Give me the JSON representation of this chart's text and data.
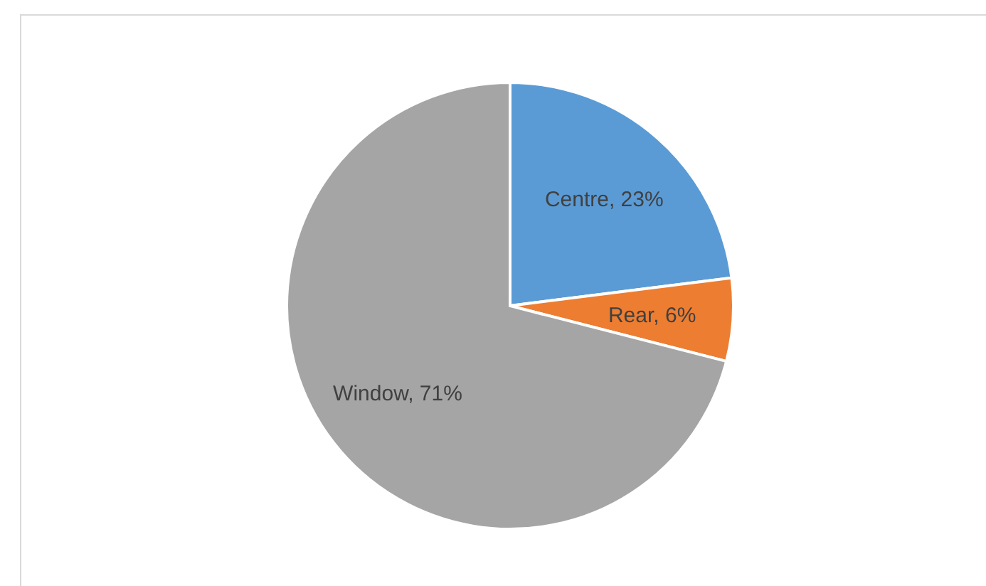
{
  "chart_data": {
    "type": "pie",
    "categories": [
      "Centre",
      "Rear",
      "Window"
    ],
    "values": [
      23,
      6,
      71
    ],
    "colors": [
      "#5b9bd5",
      "#ed7d31",
      "#a5a5a5"
    ],
    "value_labels": [
      "23%",
      "6%",
      "71%"
    ]
  }
}
